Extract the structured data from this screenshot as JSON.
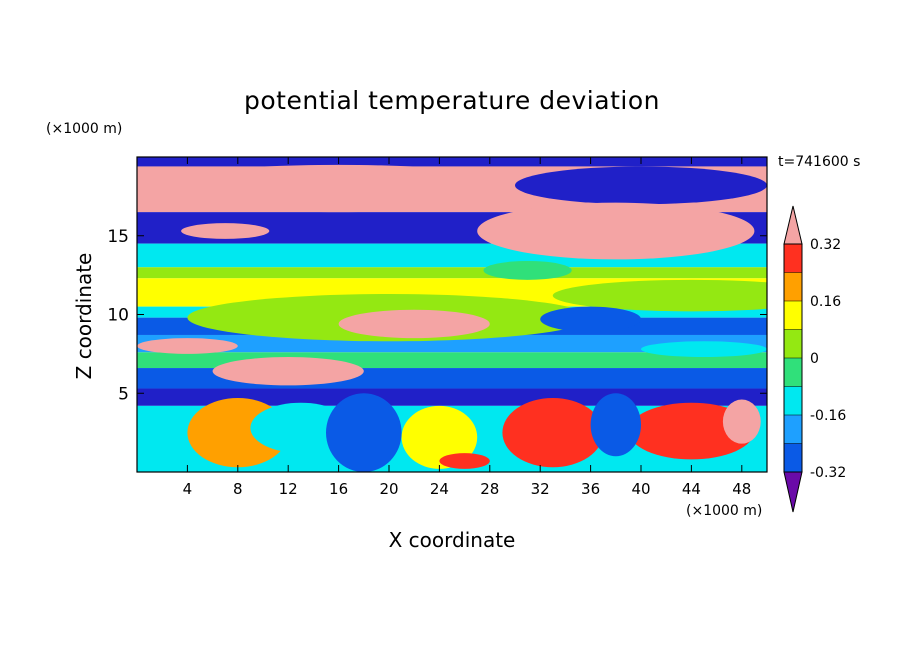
{
  "chart_data": {
    "type": "heatmap",
    "title": "potential temperature deviation",
    "xlabel": "X coordinate",
    "ylabel": "Z coordinate",
    "x_unit": "(×1000 m)",
    "y_unit": "(×1000 m)",
    "annotation": "t=741600 s",
    "xlim": [
      0,
      50
    ],
    "ylim": [
      0,
      20
    ],
    "x_ticks": [
      4,
      8,
      12,
      16,
      20,
      24,
      28,
      32,
      36,
      40,
      44,
      48
    ],
    "y_ticks": [
      5,
      10,
      15
    ],
    "colorbar": {
      "levels": [
        -0.4,
        -0.32,
        -0.24,
        -0.16,
        -0.08,
        0,
        0.08,
        0.16,
        0.24,
        0.32,
        0.4
      ],
      "colors": [
        "#6a0aa8",
        "#2020c8",
        "#0a5ae6",
        "#1ea0ff",
        "#00e8f0",
        "#30e07a",
        "#94e812",
        "#ffff00",
        "#ffa000",
        "#ff3020",
        "#f4a4a4"
      ],
      "labels": [
        "0.32",
        "0.16",
        "0",
        "-0.16",
        "-0.32"
      ],
      "label_values": [
        0.32,
        0.16,
        0,
        -0.16,
        -0.32
      ]
    },
    "bands": [
      {
        "z": [
          19.4,
          20
        ],
        "value": -0.36
      },
      {
        "z": [
          16.5,
          19.4
        ],
        "value": 0.45
      },
      {
        "z": [
          14.5,
          16.5
        ],
        "value": -0.36
      },
      {
        "z": [
          13.0,
          14.5
        ],
        "value": -0.1
      },
      {
        "z": [
          12.3,
          13.0
        ],
        "value": 0.04
      },
      {
        "z": [
          10.5,
          12.3
        ],
        "value": 0.1
      },
      {
        "z": [
          9.8,
          10.5
        ],
        "value": -0.12
      },
      {
        "z": [
          8.7,
          9.8
        ],
        "value": -0.3
      },
      {
        "z": [
          7.6,
          8.7
        ],
        "value": -0.2
      },
      {
        "z": [
          6.6,
          7.6
        ],
        "value": -0.06
      },
      {
        "z": [
          5.3,
          6.6
        ],
        "value": -0.3
      },
      {
        "z": [
          4.2,
          5.3
        ],
        "value": -0.36
      },
      {
        "z": [
          0,
          4.2
        ],
        "value": -0.1
      }
    ],
    "features": [
      {
        "x": 16,
        "z": 18,
        "rx": 16,
        "rz": 1.5,
        "value": 0.45
      },
      {
        "x": 40,
        "z": 18.2,
        "rx": 10,
        "rz": 1.2,
        "value": -0.36
      },
      {
        "x": 38,
        "z": 15.3,
        "rx": 11,
        "rz": 1.8,
        "value": 0.45
      },
      {
        "x": 7,
        "z": 15.3,
        "rx": 3.5,
        "rz": 0.5,
        "value": 0.45
      },
      {
        "x": 44,
        "z": 11.2,
        "rx": 11,
        "rz": 1.0,
        "value": 0.02
      },
      {
        "x": 31,
        "z": 12.8,
        "rx": 3.5,
        "rz": 0.6,
        "value": -0.05
      },
      {
        "x": 20,
        "z": 9.8,
        "rx": 16,
        "rz": 1.5,
        "value": 0.06
      },
      {
        "x": 22,
        "z": 9.4,
        "rx": 6,
        "rz": 0.9,
        "value": 0.45
      },
      {
        "x": 36,
        "z": 9.7,
        "rx": 4,
        "rz": 0.8,
        "value": -0.3
      },
      {
        "x": 12,
        "z": 6.4,
        "rx": 6,
        "rz": 0.9,
        "value": 0.45
      },
      {
        "x": 4,
        "z": 8.0,
        "rx": 4,
        "rz": 0.5,
        "value": 0.45
      },
      {
        "x": 45,
        "z": 7.8,
        "rx": 5,
        "rz": 0.5,
        "value": -0.12
      },
      {
        "x": 8,
        "z": 2.5,
        "rx": 4,
        "rz": 2.2,
        "value": 0.16
      },
      {
        "x": 13,
        "z": 2.8,
        "rx": 4,
        "rz": 1.6,
        "value": -0.16
      },
      {
        "x": 18,
        "z": 2.5,
        "rx": 3,
        "rz": 2.5,
        "value": -0.3
      },
      {
        "x": 24,
        "z": 2.2,
        "rx": 3,
        "rz": 2.0,
        "value": 0.08
      },
      {
        "x": 33,
        "z": 2.5,
        "rx": 4,
        "rz": 2.2,
        "value": 0.28
      },
      {
        "x": 26,
        "z": 0.7,
        "rx": 2,
        "rz": 0.5,
        "value": 0.28
      },
      {
        "x": 44,
        "z": 2.6,
        "rx": 5,
        "rz": 1.8,
        "value": 0.24
      },
      {
        "x": 48,
        "z": 3.2,
        "rx": 1.5,
        "rz": 1.4,
        "value": 0.45
      },
      {
        "x": 38,
        "z": 3.0,
        "rx": 2,
        "rz": 2,
        "value": -0.32
      }
    ]
  }
}
